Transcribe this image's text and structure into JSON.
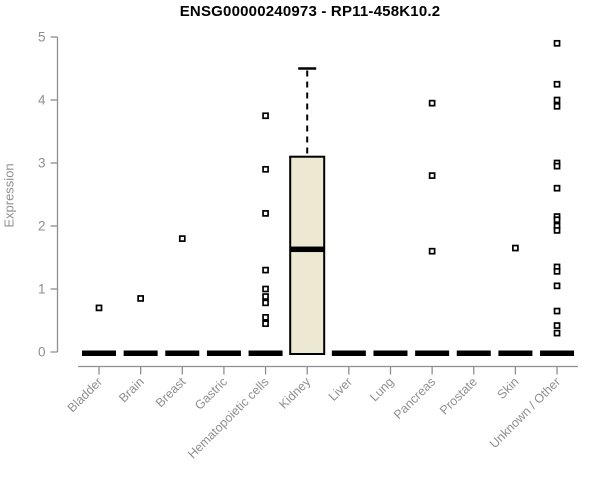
{
  "chart_data": {
    "type": "boxplot",
    "title": "ENSG00000240973 - RP11-458K10.2",
    "ylabel": "Expression",
    "xlabel": "",
    "ylim": [
      0,
      5
    ],
    "yticks": [
      0,
      1,
      2,
      3,
      4,
      5
    ],
    "grid": false,
    "legend": false,
    "colors": {
      "box_fill": "#ece8d2",
      "box_border": "#000000",
      "median": "#000000",
      "outlier_stroke": "#000000",
      "outlier_fill": "#ffffff",
      "axis": "#8f8f8f",
      "tick_label": "#8f8f8f",
      "title": "#000000"
    },
    "categories": [
      "Bladder",
      "Brain",
      "Breast",
      "Gastric",
      "Hematopoietic cells",
      "Kidney",
      "Liver",
      "Lung",
      "Pancreas",
      "Prostate",
      "Skin",
      "Unknown / Other"
    ],
    "boxes": [
      {
        "category": "Bladder",
        "whisker_low": 0,
        "q1": 0,
        "median": 0,
        "q3": 0,
        "whisker_high": 0,
        "outliers": [
          0.7
        ]
      },
      {
        "category": "Brain",
        "whisker_low": 0,
        "q1": 0,
        "median": 0,
        "q3": 0,
        "whisker_high": 0,
        "outliers": [
          0.85
        ]
      },
      {
        "category": "Breast",
        "whisker_low": 0,
        "q1": 0,
        "median": 0,
        "q3": 0,
        "whisker_high": 0,
        "outliers": [
          1.8
        ]
      },
      {
        "category": "Gastric",
        "whisker_low": 0,
        "q1": 0,
        "median": 0,
        "q3": 0,
        "whisker_high": 0,
        "outliers": []
      },
      {
        "category": "Hematopoietic cells",
        "whisker_low": 0,
        "q1": 0,
        "median": 0,
        "q3": 0,
        "whisker_high": 0,
        "outliers": [
          3.75,
          2.9,
          2.2,
          1.3,
          1.0,
          0.88,
          0.78,
          0.55,
          0.45
        ]
      },
      {
        "category": "Kidney",
        "whisker_low": 0,
        "q1": 0,
        "median": 1.65,
        "q3": 3.1,
        "whisker_high": 4.5,
        "outliers": []
      },
      {
        "category": "Liver",
        "whisker_low": 0,
        "q1": 0,
        "median": 0,
        "q3": 0,
        "whisker_high": 0,
        "outliers": []
      },
      {
        "category": "Lung",
        "whisker_low": 0,
        "q1": 0,
        "median": 0,
        "q3": 0,
        "whisker_high": 0,
        "outliers": []
      },
      {
        "category": "Pancreas",
        "whisker_low": 0,
        "q1": 0,
        "median": 0,
        "q3": 0,
        "whisker_high": 0,
        "outliers": [
          3.95,
          2.8,
          1.6
        ]
      },
      {
        "category": "Prostate",
        "whisker_low": 0,
        "q1": 0,
        "median": 0,
        "q3": 0,
        "whisker_high": 0,
        "outliers": []
      },
      {
        "category": "Skin",
        "whisker_low": 0,
        "q1": 0,
        "median": 0,
        "q3": 0,
        "whisker_high": 0,
        "outliers": [
          1.65
        ]
      },
      {
        "category": "Unknown / Other",
        "whisker_low": 0,
        "q1": 0,
        "median": 0,
        "q3": 0,
        "whisker_high": 0,
        "outliers": [
          4.9,
          4.25,
          4.0,
          3.9,
          3.0,
          2.95,
          2.6,
          2.15,
          2.1,
          2.0,
          1.93,
          1.35,
          1.28,
          1.05,
          0.65,
          0.42,
          0.3
        ]
      }
    ]
  }
}
